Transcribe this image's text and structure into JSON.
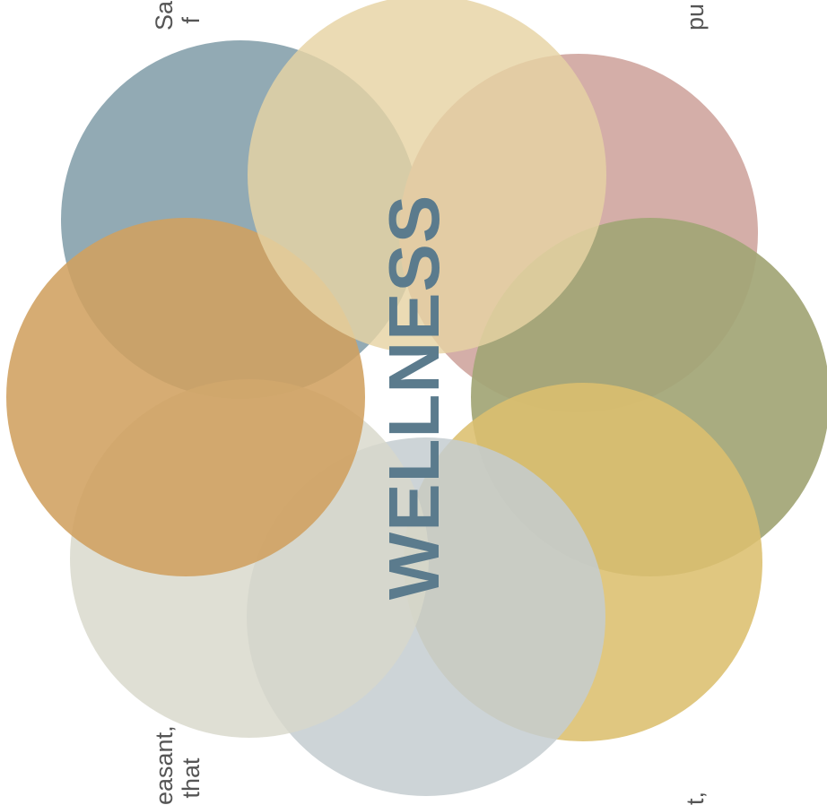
{
  "diagram": {
    "title": "WELLNESS",
    "colors": {
      "title": "#5b7b8d",
      "text": "#555555",
      "background": "#ffffff"
    },
    "circles": [
      {
        "name": "slate-blue",
        "color": "#90a8b2"
      },
      {
        "name": "rose",
        "color": "#d3aca6"
      },
      {
        "name": "olive",
        "color": "#a3a676"
      },
      {
        "name": "mustard",
        "color": "#dcbf6e"
      },
      {
        "name": "light-gray-blue",
        "color": "#c4ccd0"
      },
      {
        "name": "pale-gray",
        "color": "#d8d8ca"
      },
      {
        "name": "orange",
        "color": "#d0a060"
      },
      {
        "name": "cream",
        "color": "#e6d3a3"
      }
    ],
    "text_fragments": [
      {
        "text": "Sa\n f"
      },
      {
        "text": "pu"
      },
      {
        "text": "easant,\n that"
      },
      {
        "text": "t,"
      }
    ]
  }
}
